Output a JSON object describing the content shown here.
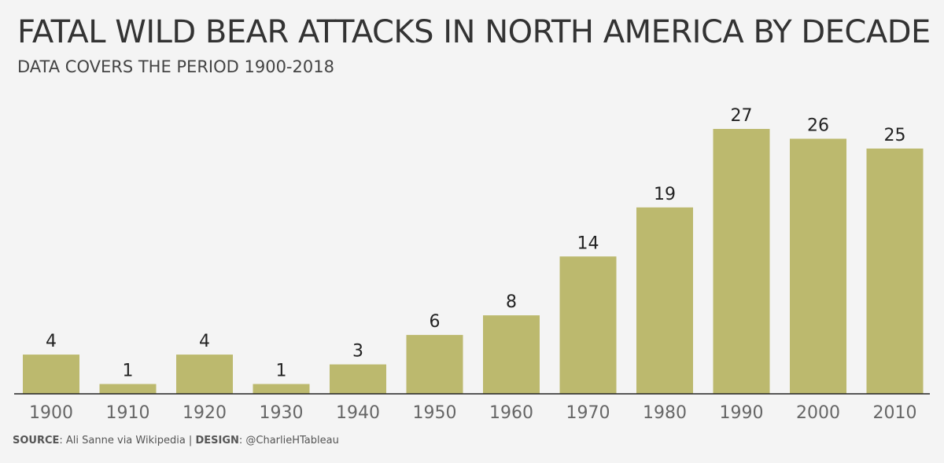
{
  "title": "FATAL WILD BEAR ATTACKS IN NORTH AMERICA BY DECADE",
  "subtitle": "DATA COVERS THE PERIOD 1900-2018",
  "footer": {
    "source_label": "SOURCE",
    "source_text": ": Ali Sanne via Wikipedia | ",
    "design_label": "DESIGN",
    "design_text": ": @CharlieHTableau"
  },
  "colors": {
    "bar": "#bcb96e",
    "axis": "#222222",
    "background": "#f4f4f4"
  },
  "chart_data": {
    "type": "bar",
    "title": "FATAL WILD BEAR ATTACKS IN NORTH AMERICA BY DECADE",
    "subtitle": "DATA COVERS THE PERIOD 1900-2018",
    "categories": [
      "1900",
      "1910",
      "1920",
      "1930",
      "1940",
      "1950",
      "1960",
      "1970",
      "1980",
      "1990",
      "2000",
      "2010"
    ],
    "values": [
      4,
      1,
      4,
      1,
      3,
      6,
      8,
      14,
      19,
      27,
      26,
      25
    ],
    "xlabel": "",
    "ylabel": "",
    "ylim": [
      0,
      27
    ],
    "grid": false,
    "data_labels": true
  }
}
